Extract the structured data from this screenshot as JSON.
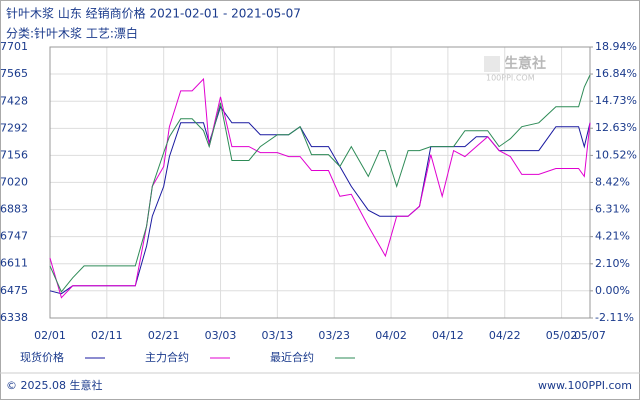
{
  "chart_data": {
    "type": "line",
    "title": "针叶木浆 山东 经销商价格 2021-02-01 - 2021-05-07",
    "subtitle": "分类:针叶木浆 工艺:漂白",
    "watermark": "生意社",
    "watermark_sub": "100PPI.COM",
    "footer_left": "© 2025.08 生意社",
    "footer_right": "www.100PPI.com",
    "x": [
      "02/01",
      "02/03",
      "02/05",
      "02/07",
      "02/10",
      "02/13",
      "02/16",
      "02/18",
      "02/19",
      "02/21",
      "02/22",
      "02/24",
      "02/26",
      "02/28",
      "03/01",
      "03/03",
      "03/05",
      "03/08",
      "03/10",
      "03/13",
      "03/15",
      "03/17",
      "03/19",
      "03/22",
      "03/24",
      "03/26",
      "03/29",
      "03/31",
      "04/01",
      "04/03",
      "04/05",
      "04/07",
      "04/09",
      "04/11",
      "04/13",
      "04/15",
      "04/17",
      "04/19",
      "04/21",
      "04/23",
      "04/25",
      "04/28",
      "05/01",
      "05/03",
      "05/05",
      "05/06",
      "05/07"
    ],
    "xlim": [
      "02/01",
      "05/07"
    ],
    "xticks": [
      "02/01",
      "02/11",
      "02/21",
      "03/03",
      "03/13",
      "03/23",
      "04/02",
      "04/12",
      "04/22",
      "05/02",
      "05/07"
    ],
    "ylim": [
      6338,
      7701
    ],
    "yticks": [
      6338,
      6475,
      6611,
      6747,
      6883,
      7020,
      7156,
      7292,
      7428,
      7565,
      7701
    ],
    "y2lim": [
      -2.11,
      18.94
    ],
    "y2ticks": [
      {
        "value": -2.11,
        "label": "-2.11%"
      },
      {
        "value": 0.0,
        "label": "0.00%"
      },
      {
        "value": 2.1,
        "label": "2.10%"
      },
      {
        "value": 4.21,
        "label": "4.21%"
      },
      {
        "value": 6.31,
        "label": "6.31%"
      },
      {
        "value": 8.42,
        "label": "8.42%"
      },
      {
        "value": 10.52,
        "label": "10.52%"
      },
      {
        "value": 12.63,
        "label": "12.63%"
      },
      {
        "value": 14.73,
        "label": "14.73%"
      },
      {
        "value": 16.84,
        "label": "16.84%"
      },
      {
        "value": 18.94,
        "label": "18.94%"
      }
    ],
    "grid": true,
    "series": [
      {
        "name": "现货价格",
        "color": "#1a1aa0",
        "values": [
          6475,
          6460,
          6500,
          6500,
          6500,
          6500,
          6500,
          6700,
          6850,
          7000,
          7150,
          7320,
          7320,
          7320,
          7220,
          7400,
          7320,
          7320,
          7260,
          7260,
          7260,
          7300,
          7200,
          7200,
          7100,
          7000,
          6880,
          6850,
          6850,
          6850,
          6850,
          6900,
          7200,
          7200,
          7200,
          7200,
          7250,
          7250,
          7180,
          7180,
          7180,
          7180,
          7300,
          7300,
          7300,
          7200,
          7320
        ]
      },
      {
        "name": "主力合约",
        "color": "#e000d0",
        "values": [
          6640,
          6440,
          6500,
          6500,
          6500,
          6500,
          6500,
          6800,
          7000,
          7100,
          7300,
          7480,
          7480,
          7540,
          7200,
          7450,
          7200,
          7200,
          7170,
          7170,
          7150,
          7150,
          7080,
          7080,
          6950,
          6960,
          6800,
          6700,
          6650,
          6850,
          6850,
          6900,
          7160,
          6950,
          7180,
          7150,
          7200,
          7250,
          7180,
          7150,
          7060,
          7060,
          7090,
          7090,
          7090,
          7050,
          7320
        ]
      },
      {
        "name": "最近合约",
        "color": "#2e8b57",
        "values": [
          6600,
          6470,
          6540,
          6600,
          6600,
          6600,
          6600,
          6800,
          7000,
          7170,
          7250,
          7340,
          7340,
          7280,
          7200,
          7420,
          7130,
          7130,
          7200,
          7260,
          7260,
          7300,
          7160,
          7160,
          7100,
          7200,
          7050,
          7180,
          7180,
          7000,
          7180,
          7180,
          7200,
          7200,
          7200,
          7280,
          7280,
          7280,
          7200,
          7240,
          7300,
          7320,
          7400,
          7400,
          7400,
          7500,
          7560
        ]
      }
    ]
  }
}
